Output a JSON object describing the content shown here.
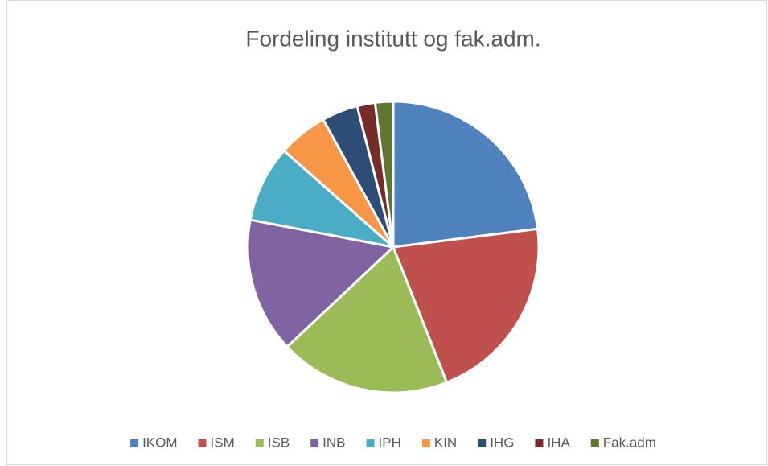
{
  "chart_data": {
    "type": "pie",
    "title": "Fordeling institutt og fak.adm.",
    "categories": [
      "IKOM",
      "ISM",
      "ISB",
      "INB",
      "IPH",
      "KIN",
      "IHG",
      "IHA",
      "Fak.adm"
    ],
    "values": [
      23,
      21,
      19,
      15,
      8.5,
      5.5,
      4,
      2,
      2
    ],
    "colors": [
      "#4f81bd",
      "#c0504d",
      "#9bbb59",
      "#8064a2",
      "#4bacc6",
      "#f79646",
      "#2c4d75",
      "#772c2a",
      "#5f7530"
    ],
    "legend": "bottom"
  }
}
